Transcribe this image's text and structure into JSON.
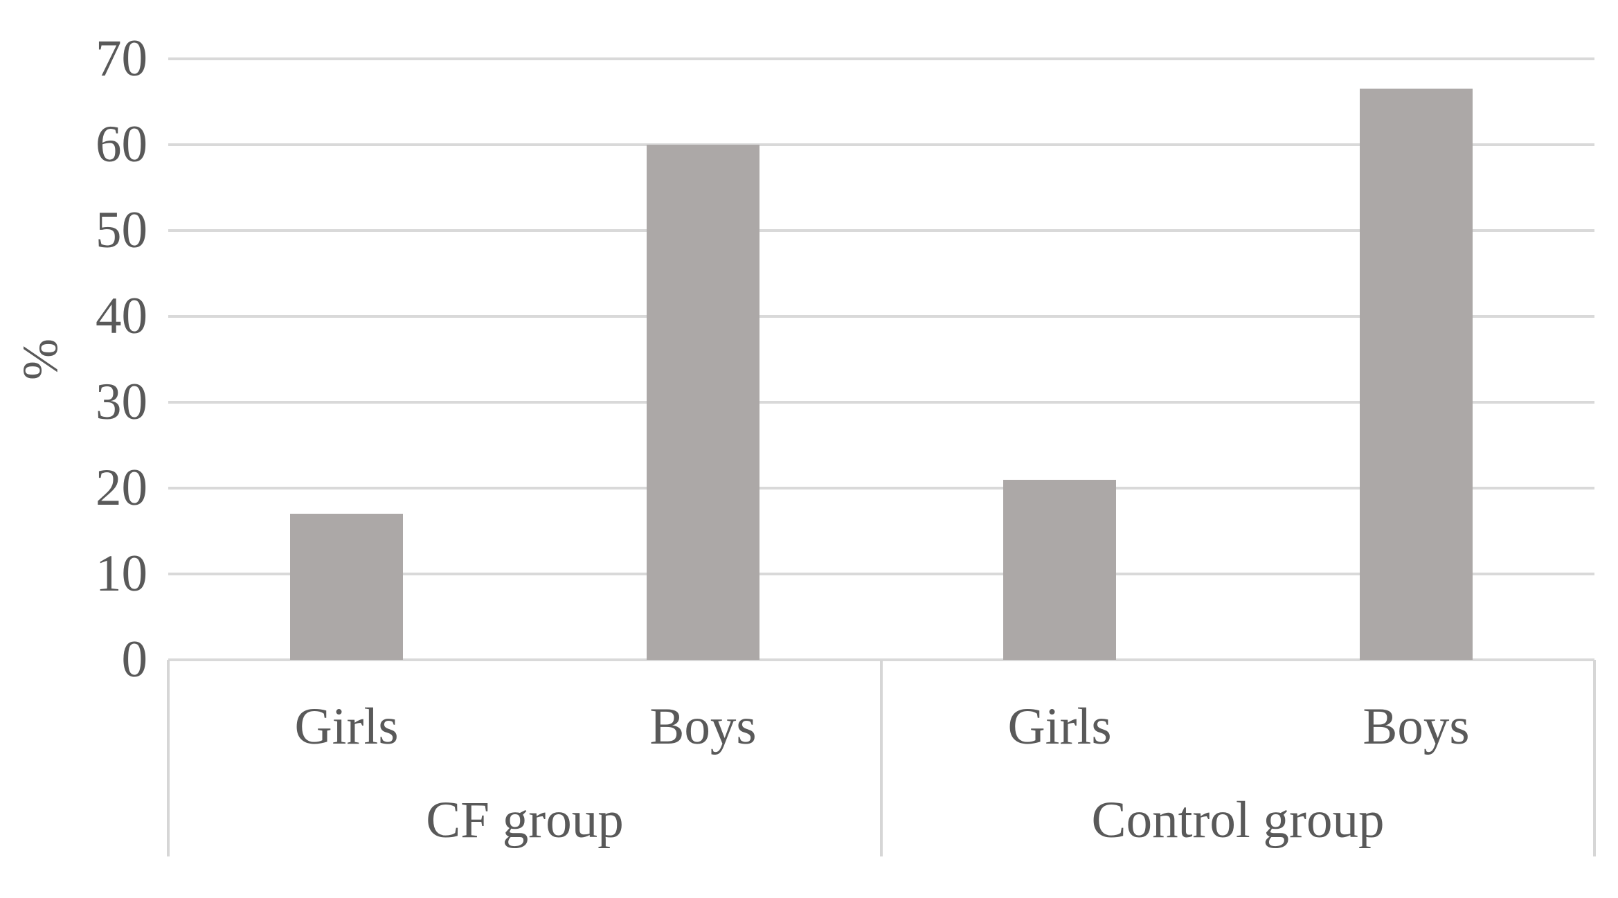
{
  "chart_data": {
    "type": "bar",
    "title": "",
    "xlabel": "",
    "ylabel": "%",
    "ylim": [
      0,
      70
    ],
    "yticks": [
      0,
      10,
      20,
      30,
      40,
      50,
      60,
      70
    ],
    "grid": "on",
    "legend": "none",
    "groups": [
      {
        "label": "CF group",
        "categories": [
          "Girls",
          "Boys"
        ],
        "values": [
          17,
          60
        ]
      },
      {
        "label": "Control group",
        "categories": [
          "Girls",
          "Boys"
        ],
        "values": [
          21,
          66.5
        ]
      }
    ],
    "colors": {
      "bar_fill": "#aca8a7",
      "gridline": "#d9d9d9",
      "axis_box_line": "#d6d6d6",
      "text": "#595959",
      "background": "#ffffff"
    }
  }
}
